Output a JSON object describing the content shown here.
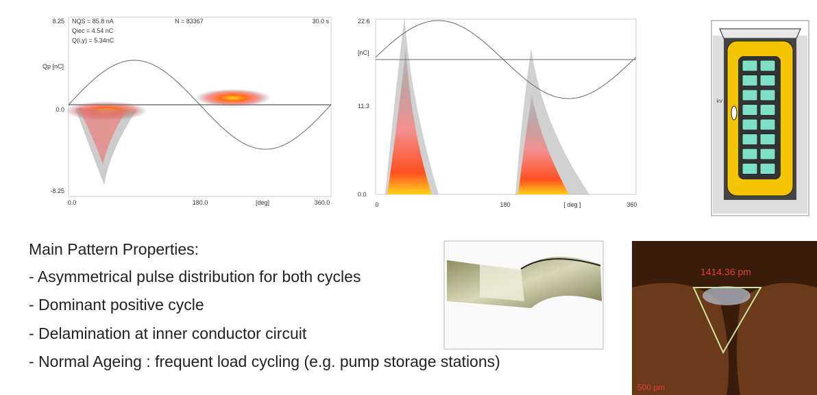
{
  "plot1": {
    "info": [
      "NQS = 85.8 nA",
      "Qiec = 4.54 nC",
      "Q(i,y) = 5.34nC"
    ],
    "count": "N = 83367",
    "time": "30.0 s",
    "y_label": "Qp [nC]",
    "yticks": [
      "8.25",
      "0.0",
      "-8.25"
    ],
    "xticks": [
      "0.0",
      "180.0",
      "360.0"
    ],
    "x_label": "[deg]"
  },
  "plot2": {
    "yticks": [
      "22.6",
      "11.3",
      "0.0"
    ],
    "y_label": "[nC]",
    "xticks": [
      "0",
      "180",
      "360"
    ],
    "x_label": "[ deg ]"
  },
  "diagram": {
    "label": "kV"
  },
  "text": {
    "heading": "Main Pattern Properties:",
    "bullets": [
      "- Asymmetrical pulse distribution for both cycles",
      "- Dominant positive cycle",
      "- Delamination at inner conductor circuit",
      "- Normal Ageing : frequent load cycling (e.g. pump storage stations)"
    ]
  },
  "micrograph": {
    "measure": "1414.36 pm",
    "scale": "500 pm"
  }
}
